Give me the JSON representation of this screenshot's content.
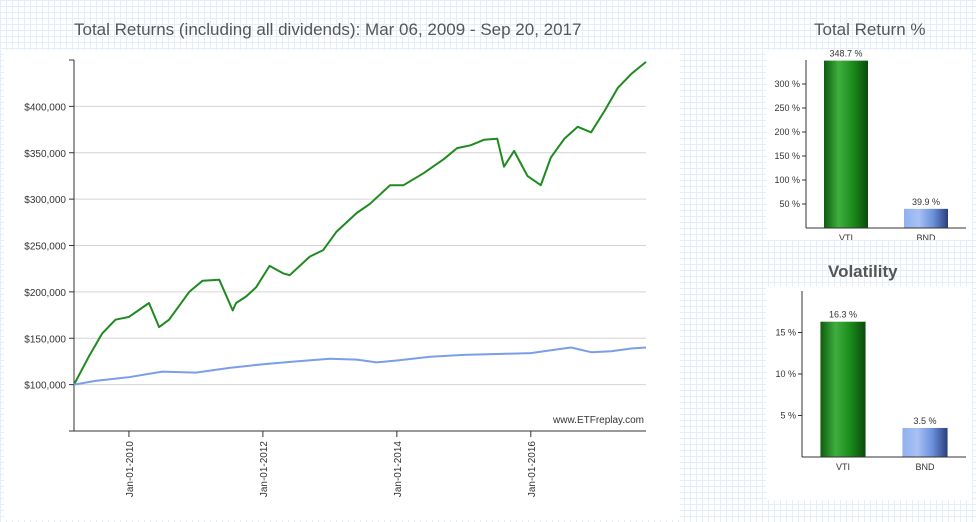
{
  "main_title": "Total Returns (including all dividends): Mar 06, 2009 - Sep 20, 2017",
  "tr_title": "Total Return %",
  "vol_title": "Volatility",
  "watermark": "www.ETFreplay.com",
  "colors": {
    "vti": "#1f8a1f",
    "bnd": "#7a9ee8"
  },
  "chart_data": [
    {
      "type": "line",
      "title": "Total Returns (including all dividends): Mar 06, 2009 - Sep 20, 2017",
      "y_tick_labels": [
        "$100,000",
        "$150,000",
        "$200,000",
        "$250,000",
        "$300,000",
        "$350,000",
        "$400,000"
      ],
      "y_ticks": [
        100000,
        150000,
        200000,
        250000,
        300000,
        350000,
        400000
      ],
      "ylim": [
        50000,
        450000
      ],
      "x_tick_labels": [
        "Jan-01-2010",
        "Jan-01-2012",
        "Jan-01-2014",
        "Jan-01-2016"
      ],
      "x_ticks": [
        2010.0,
        2012.0,
        2014.0,
        2016.0
      ],
      "xlim": [
        2009.18,
        2017.72
      ],
      "grid": true,
      "series": [
        {
          "key": "VTI",
          "color": "#1f8a1f",
          "x": [
            2009.18,
            2009.4,
            2009.6,
            2009.8,
            2010.0,
            2010.3,
            2010.45,
            2010.6,
            2010.9,
            2011.1,
            2011.35,
            2011.55,
            2011.6,
            2011.75,
            2011.9,
            2012.1,
            2012.3,
            2012.4,
            2012.7,
            2012.9,
            2013.1,
            2013.4,
            2013.6,
            2013.9,
            2014.1,
            2014.4,
            2014.7,
            2014.9,
            2015.1,
            2015.3,
            2015.5,
            2015.6,
            2015.75,
            2015.95,
            2016.15,
            2016.3,
            2016.5,
            2016.7,
            2016.9,
            2017.1,
            2017.3,
            2017.5,
            2017.72
          ],
          "values": [
            100000,
            130000,
            155000,
            170000,
            173000,
            188000,
            162000,
            170000,
            200000,
            212000,
            213000,
            180000,
            188000,
            195000,
            205000,
            228000,
            220000,
            218000,
            238000,
            245000,
            265000,
            285000,
            295000,
            315000,
            315000,
            328000,
            343000,
            355000,
            358000,
            364000,
            365000,
            335000,
            352000,
            325000,
            315000,
            345000,
            365000,
            378000,
            372000,
            395000,
            420000,
            435000,
            448000
          ]
        },
        {
          "key": "BND",
          "color": "#7a9ee8",
          "x": [
            2009.18,
            2009.5,
            2010.0,
            2010.5,
            2011.0,
            2011.5,
            2012.0,
            2012.5,
            2013.0,
            2013.4,
            2013.7,
            2014.0,
            2014.5,
            2015.0,
            2015.5,
            2016.0,
            2016.3,
            2016.6,
            2016.9,
            2017.2,
            2017.5,
            2017.72
          ],
          "values": [
            100000,
            104000,
            108000,
            114000,
            113000,
            118000,
            122000,
            125000,
            128000,
            127000,
            124000,
            126000,
            130000,
            132000,
            133000,
            134000,
            137000,
            140000,
            135000,
            136000,
            139000,
            140000
          ]
        }
      ]
    },
    {
      "type": "bar",
      "title": "Total Return %",
      "categories": [
        "VTI",
        "BND"
      ],
      "values": [
        348.7,
        39.9
      ],
      "value_labels": [
        "348.7 %",
        "39.9 %"
      ],
      "y_tick_labels": [
        "50 %",
        "100 %",
        "150 %",
        "200 %",
        "250 %",
        "300 %"
      ],
      "y_ticks": [
        50,
        100,
        150,
        200,
        250,
        300
      ],
      "ylim": [
        0,
        350
      ]
    },
    {
      "type": "bar",
      "title": "Volatility",
      "categories": [
        "VTI",
        "BND"
      ],
      "values": [
        16.3,
        3.5
      ],
      "value_labels": [
        "16.3 %",
        "3.5 %"
      ],
      "y_tick_labels": [
        "5 %",
        "10 %",
        "15 %"
      ],
      "y_ticks": [
        5,
        10,
        15
      ],
      "ylim": [
        0,
        20
      ]
    }
  ]
}
